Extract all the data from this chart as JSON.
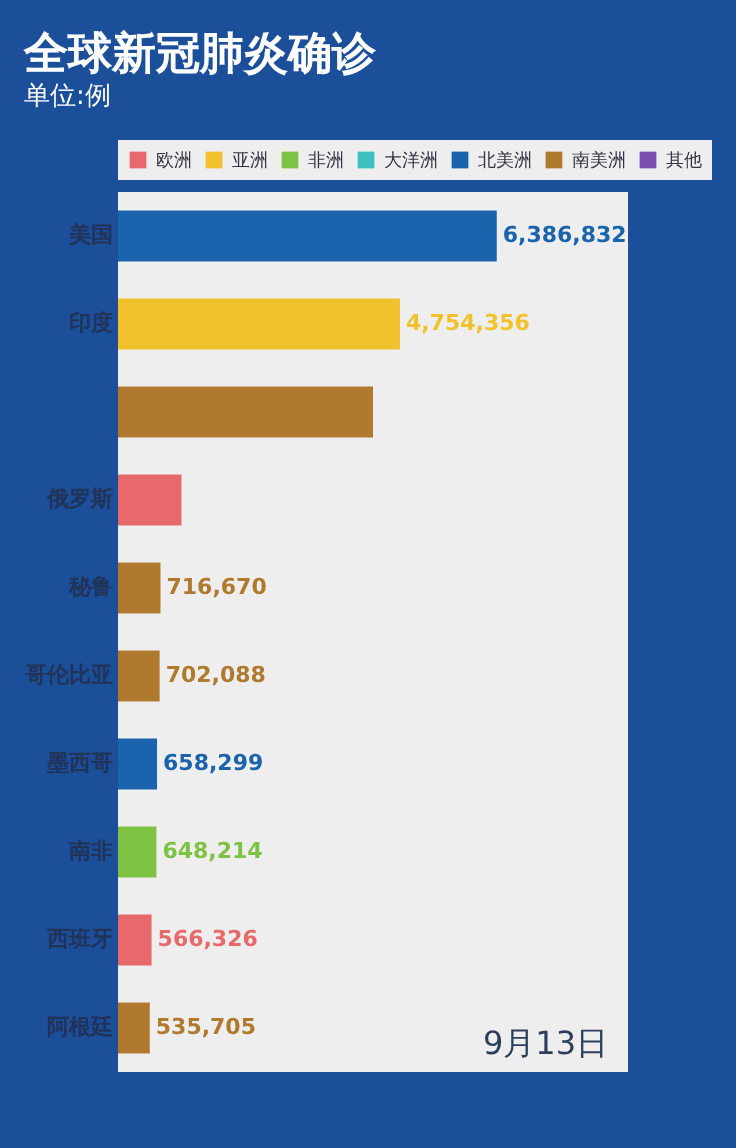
{
  "chart_data": {
    "type": "bar",
    "orientation": "horizontal",
    "title": "全球新冠肺炎确诊",
    "subtitle": "单位:例",
    "categories": [
      "美国",
      "印度",
      null,
      "俄罗斯",
      "秘鲁",
      "哥伦比亚",
      "墨西哥",
      "南非",
      "西班牙",
      "阿根廷"
    ],
    "series": [
      {
        "name": "欧洲",
        "color": "#e8696b",
        "values": [
          null,
          null,
          null,
          1070000,
          null,
          null,
          null,
          null,
          566326,
          null
        ],
        "value_labels": [
          null,
          null,
          null,
          null,
          null,
          null,
          null,
          null,
          "566,326",
          null
        ]
      },
      {
        "name": "亚洲",
        "color": "#f2c12e",
        "values": [
          null,
          4754356,
          null,
          null,
          null,
          null,
          null,
          null,
          null,
          null
        ],
        "value_labels": [
          null,
          "4,754,356",
          null,
          null,
          null,
          null,
          null,
          null,
          null,
          null
        ]
      },
      {
        "name": "非洲",
        "color": "#7dc242",
        "values": [
          null,
          null,
          null,
          null,
          null,
          null,
          null,
          648214,
          null,
          null
        ],
        "value_labels": [
          null,
          null,
          null,
          null,
          null,
          null,
          null,
          "648,214",
          null,
          null
        ]
      },
      {
        "name": "大洋洲",
        "color": "#3cc0c0",
        "values": [
          null,
          null,
          null,
          null,
          null,
          null,
          null,
          null,
          null,
          null
        ]
      },
      {
        "name": "北美洲",
        "color": "#1a63ad",
        "values": [
          6386832,
          null,
          null,
          null,
          null,
          null,
          658299,
          null,
          null,
          null
        ],
        "value_labels": [
          "6,386,832",
          null,
          null,
          null,
          null,
          null,
          "658,299",
          null,
          null,
          null
        ]
      },
      {
        "name": "南美洲",
        "color": "#b07a2e",
        "values": [
          null,
          null,
          4300000,
          null,
          716670,
          702088,
          null,
          null,
          null,
          535705
        ],
        "value_labels": [
          null,
          null,
          null,
          null,
          "716,670",
          "702,088",
          null,
          null,
          null,
          "535,705"
        ]
      },
      {
        "name": "其他",
        "color": "#7a4fb0",
        "values": [
          null,
          null,
          null,
          null,
          null,
          null,
          null,
          null,
          null,
          null
        ]
      }
    ],
    "xlim": [
      0,
      8600000
    ],
    "tick_labels": "y",
    "legend": "top",
    "annotations": [
      "9月13日"
    ]
  }
}
